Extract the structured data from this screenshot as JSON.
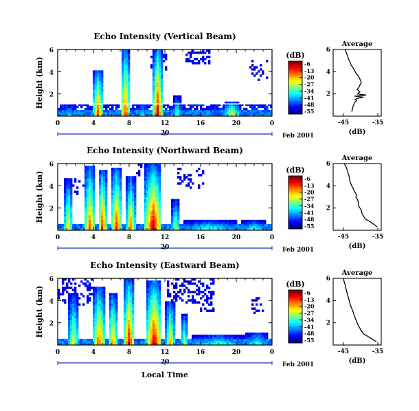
{
  "chart_data": {
    "type": "heatmap",
    "panels": [
      {
        "title": "Echo Intensity (Vertical Beam)",
        "ylabel": "Height (km)",
        "yticks": [
          "2",
          "4",
          "6"
        ],
        "ylim": [
          0,
          6
        ],
        "xticks": [
          "0",
          "4",
          "8",
          "12",
          "16",
          "20",
          "0"
        ],
        "xlim": [
          0,
          24
        ],
        "date_day": "20",
        "date_label": "Feb 2001",
        "colorbar": {
          "unit": "(dB)",
          "ticks": [
            "-6",
            "-13",
            "-20",
            "-27",
            "-34",
            "-41",
            "-48",
            "-55"
          ]
        },
        "profile": {
          "title": "Average",
          "xlabel": "(dB)",
          "xticks": [
            "-45",
            "-35"
          ],
          "xlim": [
            -48,
            -34
          ],
          "yticks": [
            "2",
            "4",
            "6"
          ],
          "ylim": [
            0,
            6
          ],
          "x": [
            -42.6,
            -42.4,
            -42.3,
            -42.0,
            -41.8,
            -41.2,
            -41.6,
            -40.8,
            -39.2,
            -41.8,
            -38.4,
            -40.9,
            -40.2,
            -41.0,
            -40.5,
            -40.2,
            -39.8,
            -40.0,
            -40.3,
            -40.6,
            -41.2,
            -41.6,
            -41.9,
            -42.3,
            -42.8,
            -43.0,
            -43.3,
            -43.6,
            -43.9,
            -44.5
          ],
          "y": [
            0.4,
            0.6,
            0.8,
            1.0,
            1.2,
            1.4,
            1.5,
            1.6,
            1.7,
            1.8,
            1.9,
            2.0,
            2.2,
            2.4,
            2.6,
            2.8,
            3.0,
            3.2,
            3.4,
            3.6,
            3.8,
            4.0,
            4.2,
            4.4,
            4.6,
            4.8,
            5.0,
            5.2,
            5.5,
            6.0
          ]
        }
      },
      {
        "title": "Echo Intensity (Northward Beam)",
        "ylabel": "Height (km)",
        "yticks": [
          "2",
          "4",
          "6"
        ],
        "ylim": [
          0,
          6
        ],
        "xticks": [
          "0",
          "4",
          "8",
          "12",
          "16",
          "20",
          "0"
        ],
        "xlim": [
          0,
          24
        ],
        "date_day": "20",
        "date_label": "Feb 2001",
        "colorbar": {
          "unit": "(dB)",
          "ticks": [
            "-6",
            "-13",
            "-20",
            "-27",
            "-34",
            "-41",
            "-48",
            "-55"
          ]
        },
        "profile": {
          "title": "Average",
          "xlabel": "(dB)",
          "xticks": [
            "-45",
            "-35"
          ],
          "xlim": [
            -48,
            -34
          ],
          "yticks": [
            "2",
            "4",
            "6"
          ],
          "ylim": [
            0,
            6
          ],
          "x": [
            -35.2,
            -36.0,
            -37.4,
            -38.6,
            -39.0,
            -39.6,
            -39.8,
            -40.2,
            -40.6,
            -40.6,
            -41.0,
            -41.4,
            -41.2,
            -41.8,
            -42.2,
            -42.6,
            -43.0,
            -43.2,
            -43.4,
            -43.7,
            -44.0,
            -44.4,
            -44.8
          ],
          "y": [
            0.3,
            0.5,
            0.8,
            1.0,
            1.2,
            1.5,
            1.8,
            2.0,
            2.2,
            2.5,
            2.8,
            3.0,
            3.2,
            3.5,
            3.8,
            4.0,
            4.3,
            4.6,
            4.9,
            5.2,
            5.5,
            5.8,
            6.0
          ]
        }
      },
      {
        "title": "Echo Intensity (Eastward Beam)",
        "ylabel": "Height (km)",
        "yticks": [
          "2",
          "4",
          "6"
        ],
        "ylim": [
          0,
          6
        ],
        "xticks": [
          "0",
          "4",
          "8",
          "12",
          "16",
          "20",
          "0"
        ],
        "xlim": [
          0,
          24
        ],
        "date_day": "20",
        "date_label": "Feb 2001",
        "xlabel": "Local Time",
        "colorbar": {
          "unit": "(dB)",
          "ticks": [
            "-6",
            "-13",
            "-20",
            "-27",
            "-34",
            "-41",
            "-48",
            "-55"
          ]
        },
        "profile": {
          "title": "Average",
          "xlabel": "(dB)",
          "xticks": [
            "-45",
            "-35"
          ],
          "xlim": [
            -48,
            -34
          ],
          "yticks": [
            "2",
            "4",
            "6"
          ],
          "ylim": [
            0,
            6
          ],
          "x": [
            -35.4,
            -36.5,
            -38.0,
            -39.2,
            -39.8,
            -40.4,
            -41.0,
            -41.4,
            -41.8,
            -42.2,
            -42.6,
            -43.0,
            -43.3,
            -43.6,
            -43.9,
            -44.2,
            -44.5,
            -44.8,
            -45.0
          ],
          "y": [
            0.3,
            0.5,
            0.8,
            1.0,
            1.3,
            1.6,
            2.0,
            2.3,
            2.6,
            3.0,
            3.3,
            3.6,
            4.0,
            4.3,
            4.6,
            5.0,
            5.4,
            5.7,
            6.0
          ]
        }
      }
    ]
  }
}
